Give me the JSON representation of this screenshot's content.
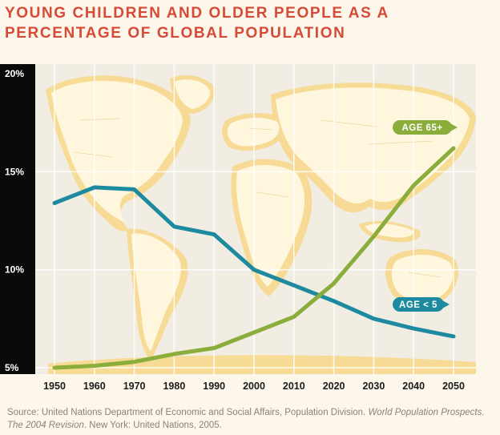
{
  "title": "YOUNG CHILDREN AND OLDER PEOPLE AS A\nPERCENTAGE OF GLOBAL POPULATION",
  "source": {
    "prefix": "Source: United Nations Department of Economic and Social Affairs, Population Division. ",
    "italic1": "World Population Prospects. The 2004 Revision",
    "suffix": ". New York: United Nations, 2005."
  },
  "colors": {
    "title": "#d64a36",
    "age_under_5": "#1d8aa0",
    "age_65_plus": "#8bad3b",
    "axis_band": "#0a0a0a",
    "map_land": "#fff7dd",
    "map_glow": "#f7d98e",
    "ocean": "#f1ede2"
  },
  "chart_data": {
    "type": "line",
    "x": [
      1950,
      1960,
      1970,
      1980,
      1990,
      2000,
      2010,
      2020,
      2030,
      2040,
      2050
    ],
    "ylim": [
      5,
      20
    ],
    "y_ticks": [
      {
        "value": 5,
        "label": "5%"
      },
      {
        "value": 10,
        "label": "10%"
      },
      {
        "value": 15,
        "label": "15%"
      },
      {
        "value": 20,
        "label": "20%"
      }
    ],
    "x_ticks": [
      "1950",
      "1960",
      "1970",
      "1980",
      "1990",
      "2000",
      "2010",
      "2020",
      "2030",
      "2040",
      "2050"
    ],
    "grid": true,
    "series": [
      {
        "name": "AGE < 5",
        "color": "#1d8aa0",
        "values": [
          13.4,
          14.2,
          14.1,
          12.2,
          11.8,
          10.0,
          9.2,
          8.4,
          7.5,
          7.0,
          6.6
        ]
      },
      {
        "name": "AGE 65+",
        "color": "#8bad3b",
        "values": [
          5.0,
          5.1,
          5.3,
          5.7,
          6.0,
          6.8,
          7.6,
          9.3,
          11.7,
          14.3,
          16.2
        ]
      }
    ]
  }
}
